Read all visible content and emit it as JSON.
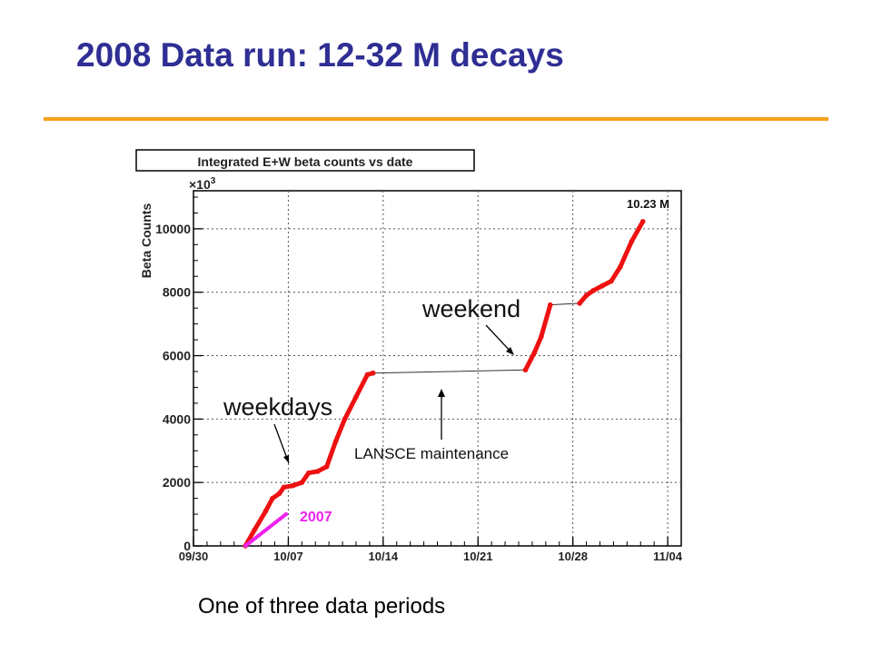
{
  "slide": {
    "title": "2008 Data run: 12-32 M decays",
    "caption": "One of three data periods",
    "title_color": "#2e2e94",
    "rule_color": "#f4a01c"
  },
  "chart_data": {
    "type": "line",
    "title": "Integrated E+W beta counts vs date",
    "ylabel": "Beta Counts",
    "y_multiplier": "×10",
    "y_multiplier_exp": "3",
    "ylim": [
      0,
      11200
    ],
    "xlim": [
      "2008-09-30",
      "2008-11-05"
    ],
    "x_tick_labels": [
      "09/30",
      "10/07",
      "10/14",
      "10/21",
      "10/28",
      "11/04"
    ],
    "y_tick_labels": [
      "0",
      "2000",
      "4000",
      "6000",
      "8000",
      "10000"
    ],
    "grid": true,
    "series": [
      {
        "name": "",
        "color": "#ee1111",
        "points": [
          [
            "2008-10-03 20:00",
            0
          ],
          [
            "2008-10-04 12:00",
            500
          ],
          [
            "2008-10-05 08:00",
            1100
          ],
          [
            "2008-10-05 20:00",
            1500
          ],
          [
            "2008-10-06 08:00",
            1650
          ],
          [
            "2008-10-06 16:00",
            1850
          ],
          [
            "2008-10-07 08:00",
            1900
          ],
          [
            "2008-10-08 00:00",
            2000
          ],
          [
            "2008-10-08 12:00",
            2300
          ],
          [
            "2008-10-09 04:00",
            2350
          ],
          [
            "2008-10-09 20:00",
            2500
          ],
          [
            "2008-10-10 12:00",
            3300
          ],
          [
            "2008-10-11 04:00",
            4000
          ],
          [
            "2008-10-12 00:00",
            4700
          ],
          [
            "2008-10-12 20:00",
            5400
          ],
          [
            "2008-10-13 06:00",
            5450
          ],
          [
            "2008-10-24 12:00",
            5550
          ],
          [
            "2008-10-25 04:00",
            6100
          ],
          [
            "2008-10-25 16:00",
            6600
          ],
          [
            "2008-10-26 08:00",
            7600
          ],
          [
            "2008-10-28 12:00",
            7650
          ],
          [
            "2008-10-29 00:00",
            7900
          ],
          [
            "2008-10-29 12:00",
            8050
          ],
          [
            "2008-10-30 04:00",
            8200
          ],
          [
            "2008-10-30 20:00",
            8350
          ],
          [
            "2008-10-31 12:00",
            8800
          ],
          [
            "2008-11-01 08:00",
            9600
          ],
          [
            "2008-11-02 04:00",
            10230
          ]
        ],
        "gaps": [
          [
            "2008-10-13 06:00",
            "2008-10-24 12:00"
          ],
          [
            "2008-10-26 08:00",
            "2008-10-28 12:00"
          ]
        ]
      },
      {
        "name": "2007",
        "color": "#ee22ee",
        "points": [
          [
            "2008-10-03 20:00",
            0
          ],
          [
            "2008-10-06 20:00",
            1000
          ]
        ]
      }
    ],
    "annotations": {
      "total": "10.23 M",
      "weekdays": "weekdays",
      "weekend": "weekend",
      "maintenance": "LANSCE maintenance",
      "year_2007": "2007"
    }
  }
}
